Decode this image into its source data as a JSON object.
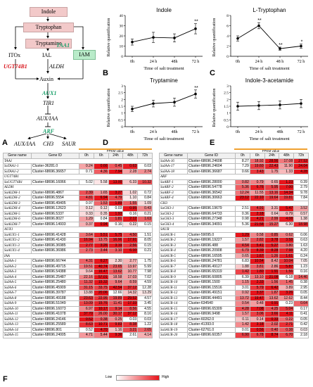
{
  "panel_labels": [
    "A",
    "B",
    "C",
    "D",
    "E",
    "F"
  ],
  "pathway": {
    "indole": "Indole",
    "tryptophan": "Tryptophan",
    "tryptamine": "Tryptamine",
    "itox": "ITOx",
    "ial": "IAL",
    "iam": "IAM",
    "auxin": "Auxin",
    "gene_taa1": "TAA1",
    "gene_ugt74b1": "UGT74B1",
    "gene_aldh": "ALDH",
    "gene_aux1": "AUX1",
    "gene_tir1": "TIR1",
    "gene_auxiaa": "AUX/IAA",
    "gene_arf": "ARF",
    "out_auxiaa": "AUX/IAA",
    "out_ch3": "CH3",
    "out_saur": "SAUR"
  },
  "chart_data": [
    {
      "type": "line",
      "title": "Indole",
      "xlabel": "Time of salt treatment",
      "ylabel": "Relative quantification",
      "categories": [
        "0h",
        "24 h",
        "48h",
        "72 h"
      ],
      "values": [
        14,
        18.5,
        18,
        27
      ],
      "errors": [
        3,
        5,
        4,
        5
      ],
      "ylim": [
        0,
        40
      ],
      "yticks": [
        0,
        10,
        20,
        30,
        40
      ],
      "annotations": [
        {
          "index": 3,
          "text": "**"
        }
      ]
    },
    {
      "type": "line",
      "title": "L-Tryptophan",
      "xlabel": "Time of salt treatment",
      "ylabel": "Relative quantification",
      "categories": [
        "0h",
        "24 h",
        "48 h",
        "72 h"
      ],
      "values": [
        3.5,
        6,
        1.5,
        2
      ],
      "errors": [
        0.5,
        0.6,
        0.3,
        0.4
      ],
      "ylim": [
        0,
        8
      ],
      "yticks": [
        0,
        2,
        4,
        6,
        8
      ],
      "annotations": [
        {
          "index": 1,
          "text": "**"
        },
        {
          "index": 2,
          "text": "**"
        },
        {
          "index": 3,
          "text": "*"
        }
      ]
    },
    {
      "type": "line",
      "title": "Tryptamine",
      "xlabel": "Time of salt treatment",
      "ylabel": "Relative quantification",
      "categories": [
        "0h",
        "24 h",
        "48h",
        "72 h"
      ],
      "values": [
        1.3,
        1.7,
        1.8,
        2.4
      ],
      "errors": [
        0.2,
        0.25,
        0.3,
        0.3
      ],
      "ylim": [
        0,
        3
      ],
      "yticks": [
        0,
        0.5,
        1,
        1.5,
        2,
        2.5,
        3
      ],
      "annotations": [
        {
          "index": 3,
          "text": "**"
        }
      ]
    },
    {
      "type": "line",
      "title": "Indole-3-acetamide",
      "xlabel": "Time of salt treatment",
      "ylabel": "Relative quantification",
      "categories": [
        "0h",
        "24 h",
        "48h",
        "72 h"
      ],
      "values": [
        1.5,
        1.55,
        1.6,
        1.7
      ],
      "errors": [
        0.3,
        0.3,
        0.3,
        0.3
      ],
      "ylim": [
        0,
        3
      ],
      "yticks": [
        0,
        0.5,
        1,
        1.5,
        2,
        2.5,
        3
      ],
      "annotations": []
    }
  ],
  "heatmap": {
    "fpkm_label": "FPKM value",
    "headers": [
      "Gene name",
      "Gene ID",
      "0h",
      "6h",
      "24h",
      "48h",
      "72h"
    ],
    "legend_low": "Low",
    "legend_high": "High",
    "left": [
      {
        "group": "TAA1"
      },
      {
        "name": "SaTAA1-1",
        "id": "Cluster-36281.0",
        "v": [
          0.24,
          0.66,
          0.45,
          0.63,
          0.03
        ]
      },
      {
        "name": "SaTAA1-2",
        "id": "Cluster-68696.36657",
        "v": [
          0.71,
          4.36,
          7.94,
          2.28,
          2.74
        ]
      },
      {
        "group": "UGT74B1"
      },
      {
        "name": "SaUGT74B1",
        "id": "Cluster-68696.16066",
        "v": [
          5.02,
          5.58,
          13.0,
          6.33,
          10.32
        ]
      },
      {
        "group": "ALDH"
      },
      {
        "name": "SaALDH-1",
        "id": "Cluster-68696.4867",
        "v": [
          2.39,
          1.65,
          3.27,
          1.02,
          0.72
        ]
      },
      {
        "name": "SaALDH-2",
        "id": "Cluster-68696.5554",
        "v": [
          4.81,
          6.94,
          4.79,
          1.1,
          0.84
        ]
      },
      {
        "name": "SaALDH-3",
        "id": "Cluster-68696.49405",
        "v": [
          0.97,
          1.53,
          1.89,
          1.55,
          1.09
        ]
      },
      {
        "name": "SaALDH-4",
        "id": "Cluster-68696.12623",
        "v": [
          0.12,
          0.12,
          0.03,
          0.95,
          0.43
        ]
      },
      {
        "name": "SaALDH-5",
        "id": "Cluster-68696.5337",
        "v": [
          0.33,
          0.35,
          1.93,
          0.16,
          0.21
        ]
      },
      {
        "name": "SaALDH-6",
        "id": "Cluster-68696.8027",
        "v": [
          1.29,
          0.84,
          1.81,
          2.12,
          1.63
        ]
      },
      {
        "name": "SaALDH-7",
        "id": "Cluster-68696.14933",
        "v": [
          0.37,
          0.94,
          0.16,
          0.22,
          0.15
        ]
      },
      {
        "group": "AUX1"
      },
      {
        "name": "SaAUX1-1",
        "id": "Cluster-68696.41428",
        "v": [
          3.64,
          5.51,
          5.75,
          4.5,
          1.51
        ]
      },
      {
        "name": "SaAUX1-2",
        "id": "Cluster-68696.41430",
        "v": [
          16.94,
          13.75,
          16.96,
          17.91,
          8.05
        ]
      },
      {
        "name": "SaAUX1-3",
        "id": "Cluster-68696.36985",
        "v": [
          2.77,
          3.26,
          3.19,
          2.56,
          0.15
        ]
      },
      {
        "name": "SaAUX1-4",
        "id": "Cluster-68696.36986",
        "v": [
          2.73,
          3.44,
          3.1,
          6.1,
          0.21
        ]
      },
      {
        "group": "IAA"
      },
      {
        "name": "SaIAA-1",
        "id": "Cluster-68696.66744",
        "v": [
          4.31,
          6.27,
          2.3,
          2.77,
          1.75
        ]
      },
      {
        "name": "SaIAA-2",
        "id": "Cluster-68696.49715",
        "v": [
          19.51,
          40.74,
          23.65,
          13.97,
          5.99
        ]
      },
      {
        "name": "SaIAA-3",
        "id": "Cluster-68696.54388",
        "v": [
          9.64,
          16.47,
          13.62,
          10.77,
          7.98
        ]
      },
      {
        "name": "SaIAA-4",
        "id": "Cluster-68696.25487",
        "v": [
          22.16,
          57.01,
          18.58,
          17.03,
          7.02
        ]
      },
      {
        "name": "SaIAA-5",
        "id": "Cluster-68696.25480",
        "v": [
          11.32,
          15.32,
          9.64,
          8.59,
          4.59
        ]
      },
      {
        "name": "SaIAA-6",
        "id": "Cluster-68696.45909",
        "v": [
          31.15,
          33.75,
          42.54,
          37.12,
          12.28
        ]
      },
      {
        "name": "SaIAA-7",
        "id": "Cluster-68696.39787",
        "v": [
          13.88,
          20.06,
          12.66,
          14.32,
          13.29
        ]
      },
      {
        "name": "SaIAA-8",
        "id": "Cluster-68696.49188",
        "v": [
          23.63,
          22.95,
          19.89,
          29.52,
          4.57
        ]
      },
      {
        "name": "SaIAA-9",
        "id": "Cluster-68696.51049",
        "v": [
          13.09,
          15.76,
          11.41,
          17.33,
          3.45
        ]
      },
      {
        "name": "SaIAA-10",
        "id": "Cluster-68696.16073",
        "v": [
          6.97,
          10.17,
          9.14,
          8.56,
          4.55
        ]
      },
      {
        "name": "SaIAA-11",
        "id": "Cluster-68696.41078",
        "v": [
          37.7,
          26.0,
          30.17,
          37.12,
          8.16
        ]
      },
      {
        "name": "SaIAA-12",
        "id": "Cluster-68696.24146",
        "v": [
          0.52,
          0.38,
          0.25,
          0.03,
          0.03
        ]
      },
      {
        "name": "SaIAA-13",
        "id": "Cluster-68696.25589",
        "v": [
          8.63,
          10.71,
          9.83,
          8.38,
          1.22
        ]
      },
      {
        "name": "SaIAA-14",
        "id": "Cluster-68696.801",
        "v": [
          0.52,
          4.7,
          1.16,
          3.21,
          2.65
        ]
      },
      {
        "name": "SaIAA-15",
        "id": "Cluster-68696.24005",
        "v": [
          4.71,
          5.44,
          9.36,
          2.61,
          4.14
        ]
      }
    ],
    "right": [
      {
        "name": "SaIAA-16",
        "id": "Cluster-68696.24608",
        "v": [
          8.27,
          18.92,
          28.56,
          17.08,
          27.53
        ]
      },
      {
        "name": "SaIAA-17",
        "id": "Cluster-68696.24604",
        "v": [
          7.29,
          19.6,
          22.43,
          11.9,
          24.04
        ]
      },
      {
        "name": "SaIAA-18",
        "id": "Cluster-68696.36687",
        "v": [
          0.66,
          3.43,
          1.75,
          1.33,
          4.28
        ]
      },
      {
        "group": "ARF"
      },
      {
        "name": "SaARF-1",
        "id": "Cluster-68696.28000",
        "v": [
          0.82,
          0.79,
          0.65,
          1.23,
          0.39
        ]
      },
      {
        "name": "SaARF-2",
        "id": "Cluster-68696.54778",
        "v": [
          5.36,
          6.76,
          5.95,
          7.0,
          2.79
        ]
      },
      {
        "name": "SaARF-3",
        "id": "Cluster-68696.36542",
        "v": [
          12.24,
          11.55,
          13.16,
          14.34,
          9.78
        ]
      },
      {
        "name": "SaARF-4",
        "id": "Cluster-68696.30663",
        "v": [
          23.12,
          22.1,
          19.64,
          19.81,
          7.84
        ]
      },
      {
        "group": "GH3"
      },
      {
        "name": "SaGH3-1",
        "id": "Cluster-68696.19679",
        "v": [
          2.51,
          4.91,
          3.31,
          5.47,
          3.52
        ]
      },
      {
        "name": "SaGH3-2",
        "id": "Cluster-68696.64733",
        "v": [
          0.36,
          2.18,
          0.64,
          0.79,
          0.57
        ]
      },
      {
        "name": "SaGH3-3",
        "id": "Cluster-68696.27348",
        "v": [
          0.98,
          4.21,
          2.99,
          4.08,
          1.38
        ]
      },
      {
        "name": "SaGH3-4",
        "id": "Cluster-68696.34091",
        "v": [
          5.36,
          21.58,
          15.27,
          6.3,
          18.98
        ]
      },
      {
        "group": "SAUR"
      },
      {
        "name": "SaSAUR-1",
        "id": "Cluster-59095.0",
        "v": [
          1.29,
          0.58,
          0.85,
          0.62,
          0.06
        ]
      },
      {
        "name": "SaSAUR-2",
        "id": "Cluster-68696.19227",
        "v": [
          1.57,
          2.82,
          3.78,
          3.58,
          0.63
        ]
      },
      {
        "name": "SaSAUR-3",
        "id": "Cluster-68696.488",
        "v": [
          4.54,
          5.41,
          5.27,
          3.8,
          1.63
        ]
      },
      {
        "name": "SaSAUR-4",
        "id": "Cluster-68696.20908",
        "v": [
          6.79,
          8.39,
          8.28,
          7.98,
          4.2
        ]
      },
      {
        "name": "SaSAUR-5",
        "id": "Cluster-68696.16595",
        "v": [
          0.65,
          1.67,
          1.26,
          1.61,
          0.24
        ]
      },
      {
        "name": "SaSAUR-6",
        "id": "Cluster-68696.24781",
        "v": [
          6.83,
          10.54,
          8.42,
          10.04,
          7.05
        ]
      },
      {
        "name": "SaSAUR-7",
        "id": "Cluster-68696.49127",
        "v": [
          1.88,
          3.81,
          2.86,
          5.87,
          1.23
        ]
      },
      {
        "name": "SaSAUR-8",
        "id": "Cluster-68696.65319",
        "v": [
          1.42,
          1.8,
          1.91,
          1.56,
          0.16
        ]
      },
      {
        "name": "SaSAUR-9",
        "id": "Cluster-68696.60805",
        "v": [
          6.39,
          13.1,
          21.08,
          6.18,
          14.46
        ]
      },
      {
        "name": "SaSAUR-10",
        "id": "Cluster-68696.1500",
        "v": [
          1.15,
          2.33,
          1.56,
          1.45,
          0.38
        ]
      },
      {
        "name": "SaSAUR-11",
        "id": "Cluster-68696.15516",
        "v": [
          3.01,
          5.79,
          6.42,
          3.89,
          2.95
        ]
      },
      {
        "name": "SaSAUR-12",
        "id": "Cluster-68696.49151",
        "v": [
          0.92,
          3.37,
          1.87,
          3.26,
          0.05
        ]
      },
      {
        "name": "SaSAUR-13",
        "id": "Cluster-68696.44491",
        "v": [
          13.72,
          19.47,
          13.62,
          12.62,
          8.44
        ]
      },
      {
        "name": "SaSAUR-14",
        "id": "Cluster-634540",
        "v": [
          0.54,
          0.48,
          0.91,
          0.23,
          0.64
        ]
      },
      {
        "name": "SaSAUR-15",
        "id": "Cluster-68696.65309",
        "v": [
          4.28,
          7.08,
          4.25,
          5.04,
          0.17
        ]
      },
      {
        "name": "SaSAUR-16",
        "id": "Cluster-68696.9498",
        "v": [
          1.57,
          3.06,
          3.66,
          4.11,
          0.41
        ]
      },
      {
        "name": "SaSAUR-17",
        "id": "Cluster-60262.0",
        "v": [
          0.11,
          0.14,
          0.33,
          0.22,
          0.05
        ]
      },
      {
        "name": "SaSAUR-18",
        "id": "Cluster-41393.0",
        "v": [
          1.42,
          3.18,
          2.02,
          2.71,
          0.42
        ]
      },
      {
        "name": "SaSAUR-19",
        "id": "Cluster-62761.0",
        "v": [
          0.01,
          0.56,
          0.4,
          0.38,
          0.03
        ]
      },
      {
        "name": "SaSAUR-20",
        "id": "Cluster-68696.60357",
        "v": [
          6.9,
          6.78,
          8.74,
          6.7,
          2.18
        ]
      }
    ]
  },
  "colors": {
    "heat_low": "#ffffff",
    "heat_high": "#e8141b",
    "pathway_box": "#f2c9c9",
    "gene_green": "#1aa06a",
    "gene_red": "#d8141b",
    "iam_box": "#b9ebc9"
  }
}
